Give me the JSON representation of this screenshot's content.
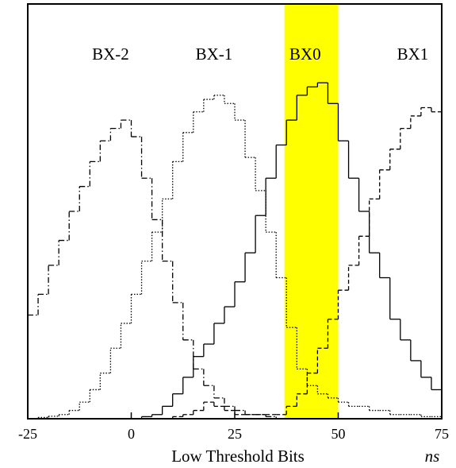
{
  "chart_data": {
    "type": "histogram",
    "xlabel": "Low Threshold Bits",
    "xunit": "ns",
    "xlim": [
      -25,
      75
    ],
    "xticks": [
      -25,
      0,
      25,
      50,
      75
    ],
    "ylim": [
      0,
      100
    ],
    "highlight_x": [
      37,
      50
    ],
    "highlight_color": "#ffff00",
    "bins": [
      -25,
      -22.5,
      -20,
      -17.5,
      -15,
      -12.5,
      -10,
      -7.5,
      -5,
      -2.5,
      0,
      2.5,
      5,
      7.5,
      10,
      12.5,
      15,
      17.5,
      20,
      22.5,
      25,
      27.5,
      30,
      32.5,
      35,
      37.5,
      40,
      42.5,
      45,
      47.5,
      50,
      52.5,
      55,
      57.5,
      60,
      62.5,
      65,
      67.5,
      70,
      72.5,
      75
    ],
    "series": [
      {
        "name": "BX-2",
        "color": "#000000",
        "line_style": "dashdot",
        "label_x": -5,
        "label_y": 87.5,
        "values": [
          25,
          30,
          37,
          43,
          50,
          56,
          62,
          67,
          70,
          72,
          68,
          58,
          48,
          38,
          28,
          19,
          12,
          8,
          5,
          3,
          2,
          1,
          1,
          0.5,
          0,
          0,
          0,
          0,
          0,
          0,
          0,
          0,
          0,
          0,
          0,
          0,
          0,
          0,
          0,
          0
        ]
      },
      {
        "name": "BX-1",
        "color": "#000000",
        "line_style": "dotted",
        "label_x": 20,
        "label_y": 87.5,
        "values": [
          0,
          0.3,
          0.6,
          1,
          2,
          4,
          7,
          11,
          17,
          23,
          30,
          38,
          45,
          53,
          62,
          69,
          74,
          77,
          78,
          76,
          72,
          63,
          55,
          45,
          34,
          22,
          12,
          8,
          6,
          5,
          4,
          3,
          3,
          2,
          2,
          1,
          1,
          1,
          0.5,
          0.5
        ]
      },
      {
        "name": "BX0",
        "color": "#000000",
        "line_style": "solid",
        "label_x": 42,
        "label_y": 87.5,
        "values": [
          0,
          0,
          0,
          0,
          0,
          0,
          0,
          0,
          0,
          0,
          0,
          0.5,
          1,
          3,
          6,
          10,
          15,
          18,
          23,
          27,
          33,
          40,
          49,
          58,
          66,
          72,
          78,
          80,
          81,
          76,
          67,
          58,
          50,
          40,
          34,
          24,
          19,
          14,
          10,
          7
        ]
      },
      {
        "name": "BX1",
        "color": "#000000",
        "line_style": "dashed",
        "label_x": 68,
        "label_y": 87.5,
        "values": [
          0,
          0,
          0,
          0,
          0,
          0,
          0,
          0,
          0,
          0,
          0,
          0,
          0,
          0,
          0.5,
          1,
          2,
          4,
          3,
          2,
          1,
          1,
          1,
          1,
          1,
          3,
          6,
          11,
          17,
          24,
          31,
          37,
          44,
          53,
          60,
          65,
          70,
          73,
          75,
          74
        ]
      }
    ]
  }
}
